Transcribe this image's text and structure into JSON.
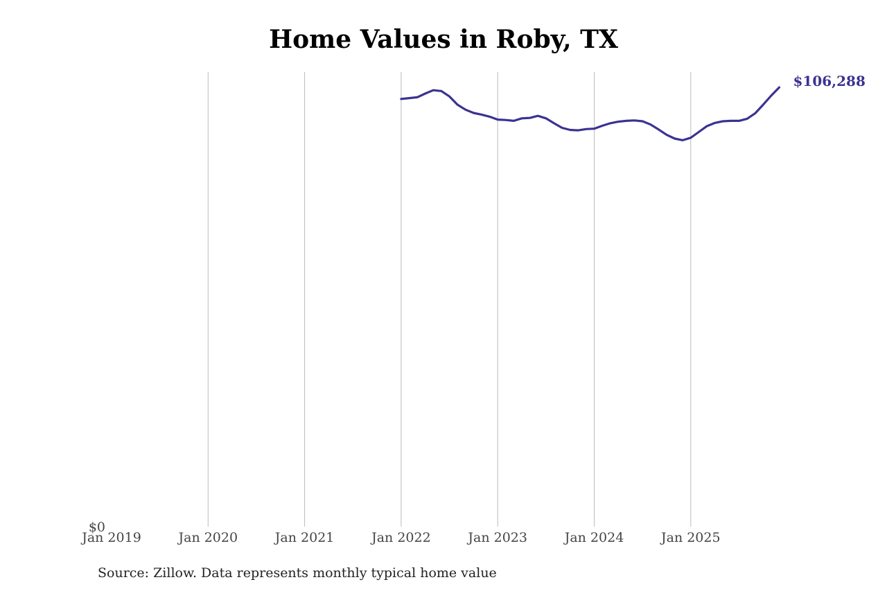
{
  "colors": {
    "line": "#3b3291",
    "grid": "#bbbbbb",
    "text": "#000000"
  },
  "chart_data": {
    "type": "line",
    "title": "Home Values in Roby, TX",
    "xlabel": "",
    "ylabel": "",
    "x_ticks": [
      "Jan 2019",
      "Jan 2020",
      "Jan 2021",
      "Jan 2022",
      "Jan 2023",
      "Jan 2024",
      "Jan 2025"
    ],
    "y_ticks": [
      "$0"
    ],
    "ylim": [
      0,
      110000
    ],
    "grid": "vertical",
    "end_label": "$106,288",
    "series": [
      {
        "x": [
          "2022-01",
          "2022-02",
          "2022-03",
          "2022-04",
          "2022-05",
          "2022-06",
          "2022-07",
          "2022-08",
          "2022-09",
          "2022-10",
          "2022-11",
          "2022-12",
          "2023-01",
          "2023-02",
          "2023-03",
          "2023-04",
          "2023-05",
          "2023-06",
          "2023-07",
          "2023-08",
          "2023-09",
          "2023-10",
          "2023-11",
          "2023-12",
          "2024-01",
          "2024-02",
          "2024-03",
          "2024-04",
          "2024-05",
          "2024-06",
          "2024-07",
          "2024-08",
          "2024-09",
          "2024-10",
          "2024-11",
          "2024-12",
          "2025-01",
          "2025-02",
          "2025-03",
          "2025-04",
          "2025-05",
          "2025-06",
          "2025-07",
          "2025-08",
          "2025-09",
          "2025-10",
          "2025-11",
          "2025-12"
        ],
        "values": [
          103500,
          103700,
          103900,
          104800,
          105600,
          105400,
          104100,
          102100,
          100900,
          100100,
          99700,
          99200,
          98500,
          98400,
          98200,
          98800,
          98900,
          99400,
          98800,
          97600,
          96500,
          96000,
          95900,
          96200,
          96300,
          97000,
          97600,
          98000,
          98200,
          98300,
          98100,
          97300,
          96100,
          94800,
          93900,
          93500,
          94100,
          95500,
          96900,
          97700,
          98100,
          98200,
          98200,
          98700,
          100000,
          102100,
          104300,
          106288
        ]
      }
    ]
  },
  "source_note": "Source: Zillow. Data represents monthly typical home value"
}
